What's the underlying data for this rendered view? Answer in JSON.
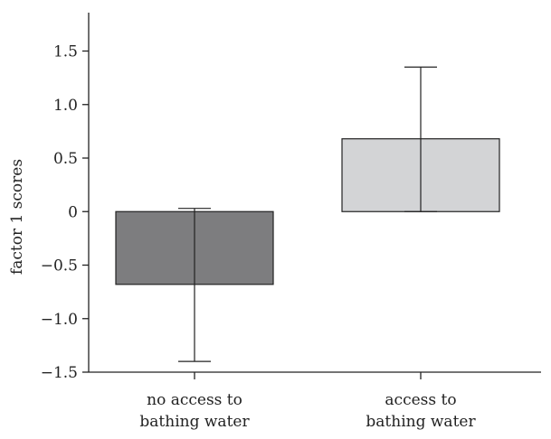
{
  "chart_data": {
    "type": "bar",
    "title": "",
    "xlabel": "",
    "ylabel": "factor 1 scores",
    "ylim": [
      -1.5,
      1.8
    ],
    "yticks": [
      -1.5,
      -1.0,
      -0.5,
      0,
      0.5,
      1.0,
      1.5
    ],
    "ytick_labels": [
      "−1.5",
      "−1.0",
      "−0.5",
      "0",
      "0.5",
      "1.0",
      "1.5"
    ],
    "categories": [
      [
        "no access to",
        "bathing water"
      ],
      [
        "access to",
        "bathing water"
      ]
    ],
    "values": [
      -0.68,
      0.68
    ],
    "error_low": [
      -1.4,
      0.0
    ],
    "error_high": [
      0.03,
      1.35
    ],
    "colors": [
      "#7d7d7f",
      "#d3d4d6"
    ],
    "grid": false
  }
}
